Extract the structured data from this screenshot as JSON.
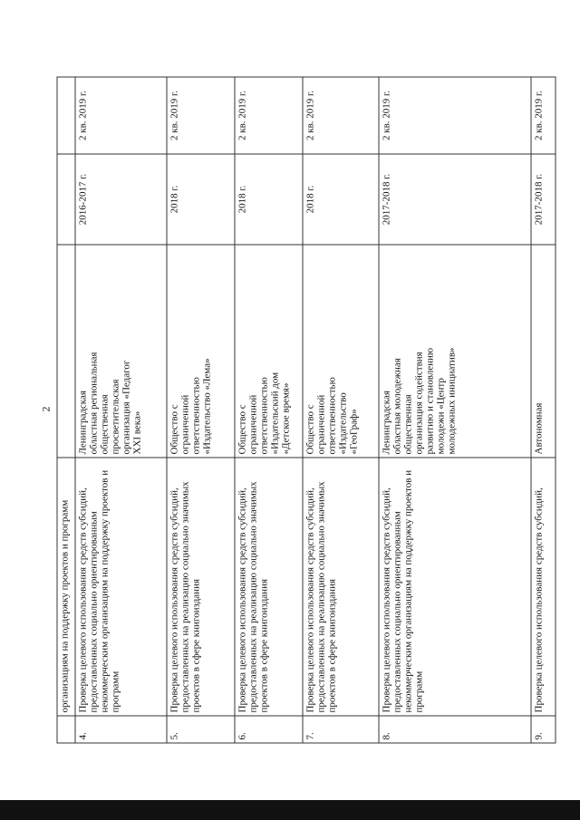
{
  "page_number": "2",
  "rows": [
    {
      "num": "",
      "description": "организациям на поддержку проектов и программ",
      "organization": "",
      "period": "",
      "deadline": ""
    },
    {
      "num": "4.",
      "description": "Проверка целевого использования  средств субсидий, предоставленных социально ориентированным некоммерческим организациям на поддержку проектов и программ",
      "organization": "Ленинградская областная региональная общественная просветительская организация «Педагог XXI века»",
      "period": "2016-2017 г.",
      "deadline": "2 кв. 2019 г."
    },
    {
      "num": "5.",
      "description": "Проверка целевого использования  средств субсидий, предоставленных на реализацию социально значимых проектов в сфере книгоиздания",
      "organization": "Общество с ограниченной ответственностью «Издательство «Лема»",
      "period": "2018 г.",
      "deadline": "2 кв. 2019 г."
    },
    {
      "num": "6.",
      "description": "Проверка целевого использования  средств субсидий, предоставленных на реализацию социально значимых проектов в сфере книгоиздания",
      "organization": "Общество с ограниченной ответственностью «Издательский дом «Детское время»",
      "period": "2018 г.",
      "deadline": "2 кв. 2019 г."
    },
    {
      "num": "7.",
      "description": "Проверка целевого использования  средств субсидий, предоставленных на реализацию социально значимых проектов в сфере книгоиздания",
      "organization": "Общество с ограниченной ответственностью «Издательство «ГеоГраф»",
      "period": "2018 г.",
      "deadline": "2 кв. 2019 г."
    },
    {
      "num": "8.",
      "description": "Проверка целевого использования  средств субсидий, предоставленных социально ориентированным некоммерческим организациям на поддержку проектов и программ",
      "organization": "Ленинградская областная молодежная общественная организация содействия развитию и становлению молодежи «Центр молодежных инициатив»",
      "period": "2017-2018 г.",
      "deadline": "2 кв. 2019 г."
    },
    {
      "num": "9.",
      "description": "Проверка целевого использования  средств субсидий,",
      "organization": "Автономная",
      "period": "2017-2018 г.",
      "deadline": "2 кв. 2019 г."
    }
  ]
}
